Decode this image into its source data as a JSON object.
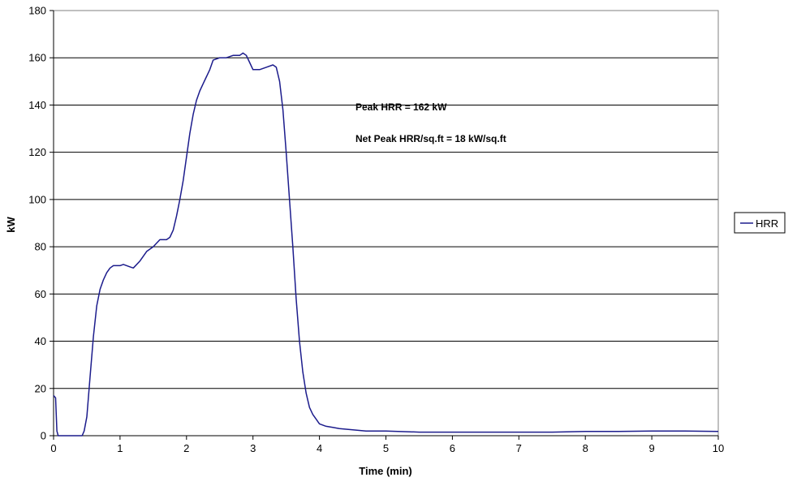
{
  "chart_data": {
    "type": "line",
    "title": "",
    "xlabel": "Time (min)",
    "ylabel": "kW",
    "xlim": [
      0,
      10
    ],
    "ylim": [
      0,
      180
    ],
    "xticks": [
      0,
      1,
      2,
      3,
      4,
      5,
      6,
      7,
      8,
      9,
      10
    ],
    "yticks": [
      0,
      20,
      40,
      60,
      80,
      100,
      120,
      140,
      160,
      180
    ],
    "grid": "horizontal",
    "legend_position": "right",
    "annotations": [
      "Peak HRR = 162 kW",
      "Net Peak HRR/sq.ft = 18 kW/sq.ft"
    ],
    "series": [
      {
        "name": "HRR",
        "color": "#1c1c8c",
        "x": [
          0,
          0.03,
          0.05,
          0.07,
          0.1,
          0.2,
          0.3,
          0.4,
          0.43,
          0.46,
          0.5,
          0.55,
          0.6,
          0.65,
          0.7,
          0.75,
          0.8,
          0.85,
          0.9,
          0.95,
          1.0,
          1.05,
          1.1,
          1.15,
          1.2,
          1.3,
          1.4,
          1.5,
          1.6,
          1.7,
          1.75,
          1.8,
          1.85,
          1.9,
          1.95,
          2.0,
          2.05,
          2.1,
          2.15,
          2.2,
          2.25,
          2.3,
          2.35,
          2.4,
          2.5,
          2.6,
          2.7,
          2.8,
          2.85,
          2.9,
          2.95,
          3.0,
          3.1,
          3.2,
          3.3,
          3.35,
          3.4,
          3.45,
          3.5,
          3.55,
          3.6,
          3.65,
          3.7,
          3.75,
          3.8,
          3.85,
          3.9,
          3.95,
          4.0,
          4.1,
          4.2,
          4.3,
          4.5,
          4.7,
          5.0,
          5.5,
          6.0,
          6.5,
          7.0,
          7.5,
          8.0,
          8.5,
          9.0,
          9.5,
          10.0
        ],
        "y": [
          17,
          16,
          2,
          0,
          0,
          0,
          0,
          0,
          0,
          2,
          8,
          25,
          42,
          55,
          62,
          66,
          69,
          71,
          72,
          72,
          72,
          72.5,
          72,
          71.5,
          71,
          74,
          78,
          80,
          83,
          83,
          84,
          87,
          93,
          100,
          108,
          118,
          128,
          136,
          142,
          146,
          149,
          152,
          155,
          159,
          160,
          160,
          161,
          161,
          162,
          161,
          158,
          155,
          155,
          156,
          157,
          156,
          150,
          138,
          120,
          100,
          80,
          58,
          40,
          27,
          18,
          12,
          9,
          7,
          5,
          4,
          3.5,
          3,
          2.5,
          2,
          2,
          1.5,
          1.5,
          1.5,
          1.5,
          1.5,
          1.8,
          1.8,
          2,
          2,
          1.8
        ]
      }
    ]
  }
}
